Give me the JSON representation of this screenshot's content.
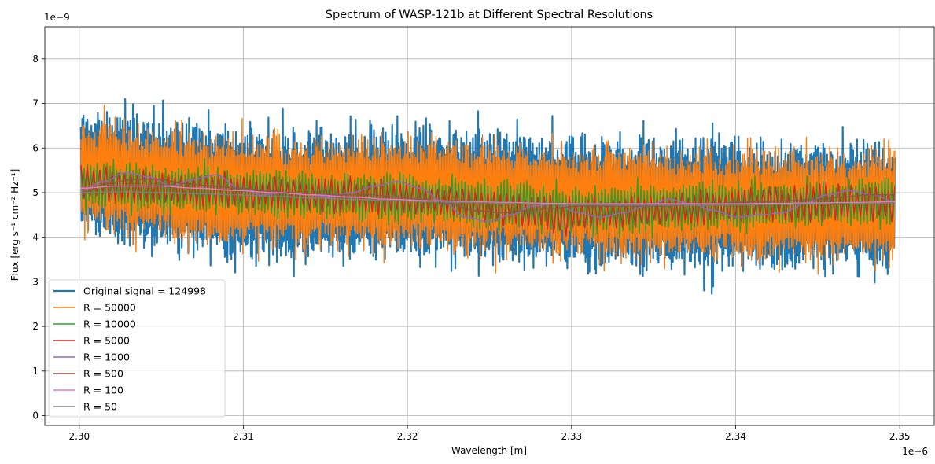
{
  "chart_data": {
    "type": "line",
    "title": "Spectrum of WASP-121b at Different Spectral Resolutions",
    "xlabel": "Wavelength [m]",
    "ylabel": "Flux [erg s⁻¹ cm⁻² Hz⁻¹]",
    "x_offset_label": "1e−6",
    "y_offset_label": "1e−9",
    "xlim": [
      2.2979,
      2.3521
    ],
    "ylim": [
      -0.22,
      8.72
    ],
    "x_ticks": [
      2.3,
      2.31,
      2.32,
      2.33,
      2.34,
      2.35
    ],
    "x_tick_labels": [
      "2.30",
      "2.31",
      "2.32",
      "2.33",
      "2.34",
      "2.35"
    ],
    "y_ticks": [
      0,
      1,
      2,
      3,
      4,
      5,
      6,
      7,
      8
    ],
    "y_tick_labels": [
      "0",
      "1",
      "2",
      "3",
      "4",
      "5",
      "6",
      "7",
      "8"
    ],
    "x_range": [
      2.3001,
      2.3497
    ],
    "grid": true,
    "legend_position": "bottom-left",
    "series": [
      {
        "name": "Original signal = 124998",
        "color": "#1f77b4",
        "mean": [
          5.4,
          5.0,
          5.0,
          4.8,
          4.7,
          4.7
        ],
        "amplitude": 2.9,
        "peak_frequency": 1250
      },
      {
        "name": "R = 50000",
        "color": "#ff7f0e",
        "mean": [
          5.4,
          5.0,
          5.0,
          4.8,
          4.7,
          4.7
        ],
        "amplitude": 2.5,
        "peak_frequency": 1050
      },
      {
        "name": "R = 10000",
        "color": "#2ca02c",
        "mean": [
          5.2,
          5.0,
          4.9,
          4.6,
          4.7,
          4.8
        ],
        "amplitude": 1.1,
        "peak_frequency": 500
      },
      {
        "name": "R = 5000",
        "color": "#d62728",
        "mean": [
          5.2,
          5.0,
          4.9,
          4.5,
          4.7,
          4.8
        ],
        "amplitude": 0.8,
        "peak_frequency": 260
      },
      {
        "name": "R = 1000",
        "values": [
          5.05,
          5.25,
          5.45,
          5.35,
          5.15,
          5.3,
          5.4,
          5.1,
          4.95,
          5.0,
          4.95,
          4.9,
          5.0,
          5.15,
          5.25,
          5.1,
          4.8,
          4.45,
          4.35,
          4.5,
          4.7,
          4.75,
          4.55,
          4.45,
          4.55,
          4.7,
          4.85,
          4.75,
          4.6,
          4.45,
          4.5,
          4.55,
          4.75,
          4.95,
          5.05,
          4.95,
          4.8
        ],
        "color": "#9467bd"
      },
      {
        "name": "R = 500",
        "values": [
          5.0,
          5.2,
          5.3,
          5.3,
          5.2,
          5.15,
          5.1,
          5.05,
          5.0,
          4.95,
          4.95,
          4.95,
          4.9,
          4.85,
          4.75,
          4.6,
          4.55,
          4.6,
          4.65,
          4.7,
          4.7,
          4.7,
          4.7,
          4.72,
          4.75,
          4.78,
          4.8,
          4.82,
          4.85,
          4.9,
          4.95,
          4.95
        ],
        "color": "#8c564b"
      },
      {
        "name": "R = 100",
        "values": [
          5.1,
          5.15,
          5.15,
          5.1,
          5.05,
          5.0,
          4.95,
          4.9,
          4.85,
          4.82,
          4.8,
          4.78,
          4.76,
          4.75,
          4.75,
          4.75,
          4.75,
          4.75,
          4.76,
          4.77,
          4.78,
          4.8
        ],
        "color": "#e377c2"
      },
      {
        "name": "R = 50",
        "values": [
          5.0,
          5.02,
          5.0,
          4.98,
          4.95,
          4.92,
          4.88,
          4.85,
          4.82,
          4.8,
          4.78,
          4.76,
          4.74,
          4.73,
          4.72,
          4.72,
          4.72,
          4.73,
          4.74,
          4.75,
          4.76,
          4.77
        ],
        "color": "#7f7f7f"
      }
    ]
  }
}
